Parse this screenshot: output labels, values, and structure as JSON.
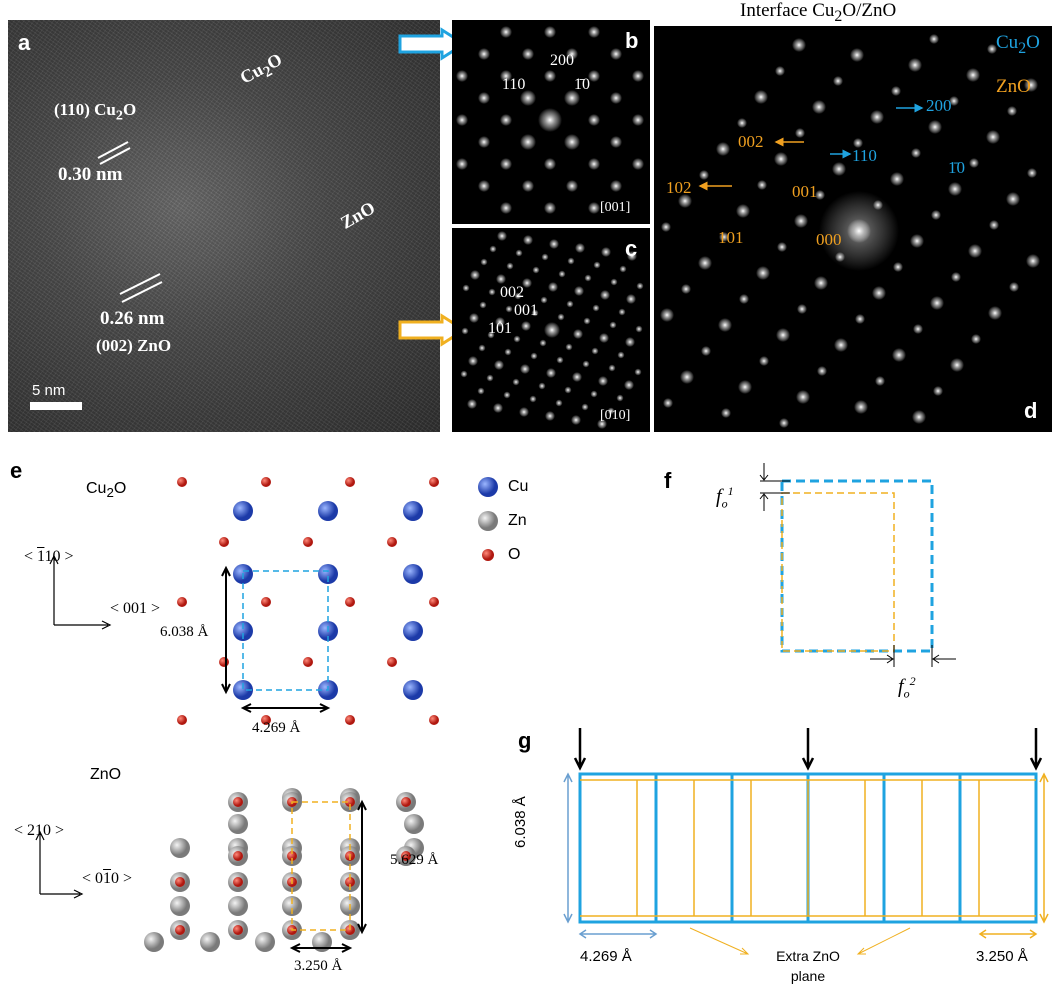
{
  "panel_a": {
    "letter": "a",
    "label_cu2o_region": "Cu2O",
    "label_110": "(110) Cu2O",
    "label_030": "0.30 nm",
    "label_zno_region": "ZnO",
    "label_026": "0.26 nm",
    "label_002": "(002) ZnO",
    "scale": "5 nm"
  },
  "panel_b": {
    "letter": "b",
    "spot_200": "200",
    "spot_110": "110",
    "spot_1bar10": "1̄0",
    "zone": "[001]"
  },
  "panel_c": {
    "letter": "c",
    "spot_002": "002",
    "spot_001": "001",
    "spot_101": "101",
    "zone": "[010]"
  },
  "panel_d": {
    "title": "Interface Cu2O/ZnO",
    "legend_cu2o": "Cu2O",
    "legend_zno": "ZnO",
    "letter": "d",
    "cu_200": "200",
    "cu_110": "110",
    "cu_1bar10": "1̄0",
    "zn_002": "002",
    "zn_001": "001",
    "zn_102": "102",
    "zn_101": "101",
    "zn_000": "000",
    "colors": {
      "cu2o": "#1fa3e0",
      "zno": "#f0a020"
    }
  },
  "panel_e": {
    "letter": "e",
    "cu2o_title": "Cu2O",
    "legend": [
      "Cu",
      "Zn",
      "O"
    ],
    "axis_up": "< ̅110 >",
    "axis_right": "< 001 >",
    "dim_v": "6.038 Å",
    "dim_h": "4.269 Å",
    "zno_title": "ZnO",
    "zno_axis_up": "< 210 >",
    "zno_axis_right": "< 0̅10 >",
    "zno_dim_v": "5.629 Å",
    "zno_dim_h": "3.250 Å"
  },
  "panel_f": {
    "letter": "f",
    "fo1": "f",
    "fo1_sup": "1",
    "fo2": "f",
    "fo2_sup": "2",
    "sub": "o"
  },
  "panel_g": {
    "letter": "g",
    "dim_v": "6.038 Å",
    "dim_left": "4.269 Å",
    "dim_right": "3.250 Å",
    "extra_line1": "Extra ZnO",
    "extra_line2": "plane"
  }
}
